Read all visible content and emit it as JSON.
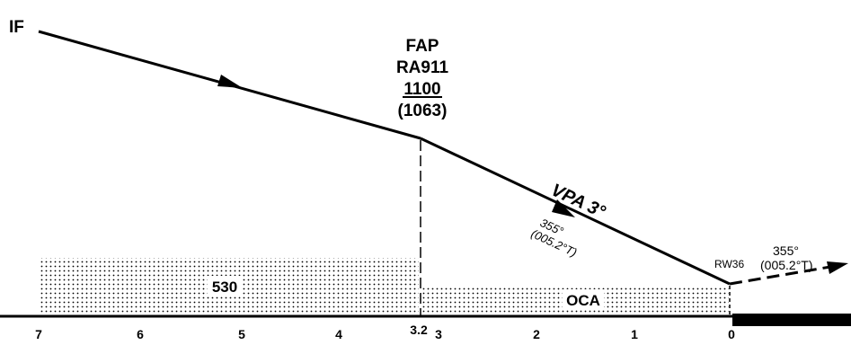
{
  "fixes": {
    "if_label": "IF",
    "fap_label": "FAP",
    "fap_name": "RA911",
    "fap_altitude": "1100",
    "fap_height": "(1063)"
  },
  "approach": {
    "vpa_label": "VPA 3°",
    "final_track_mag": "355°",
    "final_track_true": "(005.2°T)"
  },
  "runway": {
    "threshold_label": "RW36",
    "missed_track_mag": "355°",
    "missed_track_true": "(005.2°T)"
  },
  "obstacle": {
    "outer_segment_value": "530",
    "inner_segment_label": "OCA"
  },
  "distance_scale": {
    "ticks": [
      "7",
      "6",
      "5",
      "4",
      "3.2",
      "3",
      "2",
      "1",
      "0"
    ]
  },
  "colors": {
    "ink": "#000000",
    "background": "#ffffff"
  }
}
